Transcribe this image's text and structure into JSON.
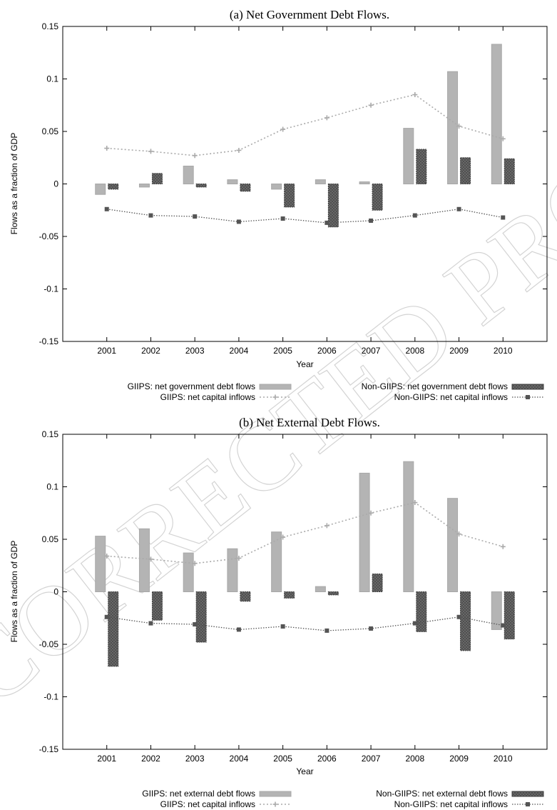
{
  "watermark": "UNCORRECTED PROOF",
  "chart_data": [
    {
      "type": "bar",
      "title": "(a) Net Government Debt Flows.",
      "xlabel": "Year",
      "ylabel": "Flows as a fraction of GDP",
      "ylim": [
        -0.15,
        0.15
      ],
      "yticks": [
        "0.15",
        "0.1",
        "0.05",
        "0",
        "-0.05",
        "-0.1",
        "-0.15"
      ],
      "categories": [
        "2001",
        "2002",
        "2003",
        "2004",
        "2005",
        "2006",
        "2007",
        "2008",
        "2009",
        "2010"
      ],
      "grid": false,
      "legend_position": "bottom",
      "series": [
        {
          "name": "GIIPS: net government debt flows",
          "kind": "bar",
          "color": "#b4b4b4",
          "values": [
            -0.01,
            -0.003,
            0.017,
            0.004,
            -0.005,
            0.004,
            0.002,
            0.053,
            0.107,
            0.133
          ]
        },
        {
          "name": "Non-GIIPS: net government debt flows",
          "kind": "bar",
          "color": "#6e6e6e",
          "values": [
            -0.005,
            0.01,
            -0.003,
            -0.007,
            -0.022,
            -0.041,
            -0.025,
            0.033,
            0.025,
            0.024
          ]
        },
        {
          "name": "GIIPS: net capital inflows",
          "kind": "line",
          "color": "#aaaaaa",
          "values": [
            0.034,
            0.031,
            0.027,
            0.032,
            0.052,
            0.063,
            0.075,
            0.085,
            0.055,
            0.043
          ]
        },
        {
          "name": "Non-GIIPS: net capital inflows",
          "kind": "line",
          "color": "#555555",
          "values": [
            -0.024,
            -0.03,
            -0.031,
            -0.036,
            -0.033,
            -0.037,
            -0.035,
            -0.03,
            -0.024,
            -0.032
          ]
        }
      ]
    },
    {
      "type": "bar",
      "title": "(b) Net External Debt Flows.",
      "xlabel": "Year",
      "ylabel": "Flows as a fraction of GDP",
      "ylim": [
        -0.15,
        0.15
      ],
      "yticks": [
        "0.15",
        "0.1",
        "0.05",
        "0",
        "-0.05",
        "-0.1",
        "-0.15"
      ],
      "categories": [
        "2001",
        "2002",
        "2003",
        "2004",
        "2005",
        "2006",
        "2007",
        "2008",
        "2009",
        "2010"
      ],
      "grid": false,
      "legend_position": "bottom",
      "series": [
        {
          "name": "GIIPS: net external debt flows",
          "kind": "bar",
          "color": "#b4b4b4",
          "values": [
            0.053,
            0.06,
            0.037,
            0.041,
            0.057,
            0.005,
            0.113,
            0.124,
            0.089,
            -0.036
          ]
        },
        {
          "name": "Non-GIIPS: net external debt flows",
          "kind": "bar",
          "color": "#6e6e6e",
          "values": [
            -0.071,
            -0.027,
            -0.048,
            -0.009,
            -0.006,
            -0.003,
            0.017,
            -0.038,
            -0.056,
            -0.045
          ]
        },
        {
          "name": "GIIPS: net capital inflows",
          "kind": "line",
          "color": "#aaaaaa",
          "values": [
            0.034,
            0.031,
            0.027,
            0.032,
            0.052,
            0.063,
            0.075,
            0.085,
            0.055,
            0.043
          ]
        },
        {
          "name": "Non-GIIPS: net capital inflows",
          "kind": "line",
          "color": "#555555",
          "values": [
            -0.024,
            -0.03,
            -0.031,
            -0.036,
            -0.033,
            -0.037,
            -0.035,
            -0.03,
            -0.024,
            -0.032
          ]
        }
      ]
    }
  ]
}
